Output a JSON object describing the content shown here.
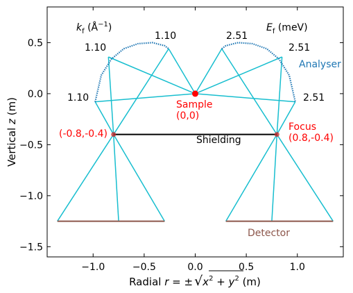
{
  "chart_data": {
    "type": "diagram",
    "xlabel": "Radial r = ±√(x² + y²) (m)",
    "xlabel_parts": {
      "prefix": "Radial ",
      "var": "r",
      "mid": " = ±",
      "root_var1": "x",
      "plus": " + ",
      "root_var2": "y",
      "suffix": " (m)"
    },
    "ylabel": "Vertical z (m)",
    "xlim": [
      -1.45,
      1.45
    ],
    "ylim": [
      -1.6,
      0.85
    ],
    "xticks": [
      -1.0,
      -0.5,
      0.0,
      0.5,
      1.0
    ],
    "xtick_labels": [
      "−1.0",
      "−0.5",
      "0.0",
      "0.5",
      "1.0"
    ],
    "yticks": [
      0.5,
      0.0,
      -0.5,
      -1.0,
      -1.5
    ],
    "ytick_labels": [
      "0.5",
      "0.0",
      "−0.5",
      "−1.0",
      "−1.5"
    ],
    "colors": {
      "beam": "#17becf",
      "analyser": "#1f77b4",
      "detector": "#8c564b",
      "highlight": "#ff0000",
      "focus_marker": "#d62728",
      "shielding": "#000000"
    },
    "sample": {
      "x": 0.0,
      "y": 0.0,
      "label": "Sample",
      "coords": "(0,0)"
    },
    "foci": [
      {
        "x": -0.8,
        "y": -0.4,
        "label": "(-0.8,-0.4)"
      },
      {
        "x": 0.8,
        "y": -0.4,
        "label": "Focus",
        "coords": "(0.8,-0.4)"
      }
    ],
    "shielding": {
      "x": [
        -0.8,
        0.8
      ],
      "y": -0.4,
      "label": "Shielding"
    },
    "analysers": [
      {
        "center": [
          -0.8,
          -0.4
        ],
        "radius": 0.8,
        "label": "kf (Å⁻¹)",
        "side": "left"
      },
      {
        "center": [
          0.8,
          -0.4
        ],
        "radius": 0.8,
        "label": "Ef (meV)",
        "side": "right"
      }
    ],
    "analyser_label": "Analyser",
    "kf_label": {
      "var": "k",
      "sub": "f",
      "unit": " (Å",
      "sup": "−1",
      "close": ")"
    },
    "ef_label": {
      "var": "E",
      "sub": "f",
      "unit": " (meV)"
    },
    "analyser_values_left": [
      "1.10",
      "1.10",
      "1.10"
    ],
    "analyser_values_right": [
      "2.51",
      "2.51",
      "2.51"
    ],
    "analyser_points": [
      [
        -0.98,
        -0.08
      ],
      [
        -0.85,
        0.36
      ],
      [
        -0.26,
        0.44
      ],
      [
        0.26,
        0.44
      ],
      [
        0.85,
        0.36
      ],
      [
        0.98,
        -0.08
      ]
    ],
    "detectors": [
      {
        "x": [
          -1.35,
          -0.3
        ],
        "y": -1.25
      },
      {
        "x": [
          0.3,
          1.35
        ],
        "y": -1.25
      }
    ],
    "detector_label": "Detector",
    "detector_points": [
      [
        -1.35,
        -1.25
      ],
      [
        -0.75,
        -1.25
      ],
      [
        -0.3,
        -1.25
      ],
      [
        0.3,
        -1.25
      ],
      [
        0.75,
        -1.25
      ],
      [
        1.35,
        -1.25
      ]
    ]
  }
}
